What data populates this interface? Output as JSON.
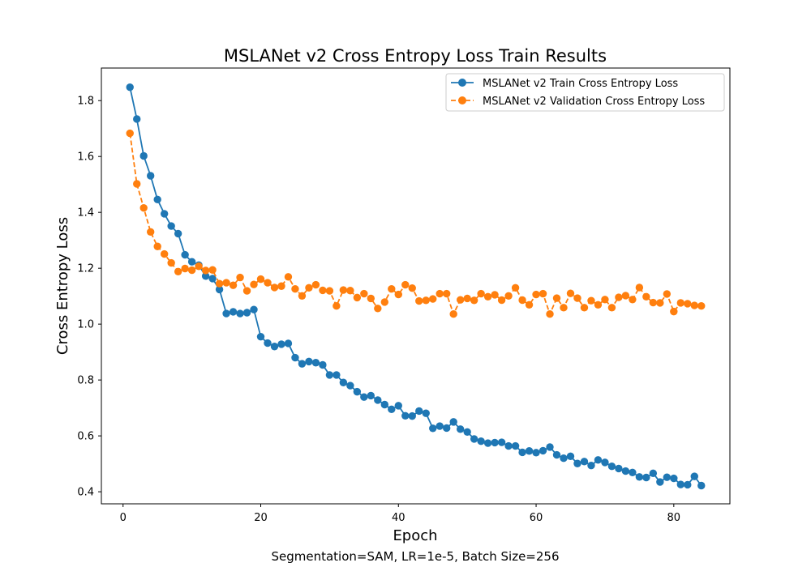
{
  "chart_data": {
    "type": "line",
    "title": "MSLANet v2 Cross Entropy Loss Train Results",
    "xlabel": "Epoch",
    "ylabel": "Cross Entropy Loss",
    "caption": "Segmentation=SAM, LR=1e-5, Batch Size=256",
    "xlim": [
      -3.15,
      88.15
    ],
    "ylim": [
      0.3568,
      1.9166
    ],
    "xticks": [
      0,
      20,
      40,
      60,
      80
    ],
    "yticks": [
      0.4,
      0.6,
      0.8,
      1.0,
      1.2,
      1.4,
      1.6,
      1.8
    ],
    "xtick_labels": [
      "0",
      "20",
      "40",
      "60",
      "80"
    ],
    "ytick_labels": [
      "0.4",
      "0.6",
      "0.8",
      "1.0",
      "1.2",
      "1.4",
      "1.6",
      "1.8"
    ],
    "grid": false,
    "legend_position": "upper-right",
    "series": [
      {
        "name": "MSLANet v2 Train Cross Entropy Loss",
        "color": "#1f77b4",
        "linestyle": "solid",
        "marker": "circle",
        "x": [
          1,
          2,
          3,
          4,
          5,
          6,
          7,
          8,
          9,
          10,
          11,
          12,
          13,
          14,
          15,
          16,
          17,
          18,
          19,
          20,
          21,
          22,
          23,
          24,
          25,
          26,
          27,
          28,
          29,
          30,
          31,
          32,
          33,
          34,
          35,
          36,
          37,
          38,
          39,
          40,
          41,
          42,
          43,
          44,
          45,
          46,
          47,
          48,
          49,
          50,
          51,
          52,
          53,
          54,
          55,
          56,
          57,
          58,
          59,
          60,
          61,
          62,
          63,
          64,
          65,
          66,
          67,
          68,
          69,
          70,
          71,
          72,
          73,
          74,
          75,
          76,
          77,
          78,
          79,
          80,
          81,
          82,
          83,
          84
        ],
        "y": [
          1.848,
          1.734,
          1.602,
          1.531,
          1.446,
          1.395,
          1.351,
          1.324,
          1.248,
          1.223,
          1.211,
          1.172,
          1.163,
          1.124,
          1.038,
          1.044,
          1.038,
          1.041,
          1.052,
          0.955,
          0.932,
          0.92,
          0.928,
          0.931,
          0.88,
          0.858,
          0.866,
          0.862,
          0.854,
          0.818,
          0.818,
          0.791,
          0.78,
          0.758,
          0.739,
          0.744,
          0.728,
          0.712,
          0.695,
          0.708,
          0.672,
          0.671,
          0.689,
          0.681,
          0.627,
          0.635,
          0.628,
          0.65,
          0.624,
          0.614,
          0.589,
          0.581,
          0.574,
          0.576,
          0.577,
          0.564,
          0.564,
          0.541,
          0.546,
          0.54,
          0.547,
          0.56,
          0.532,
          0.52,
          0.527,
          0.501,
          0.508,
          0.494,
          0.514,
          0.505,
          0.491,
          0.483,
          0.474,
          0.469,
          0.453,
          0.451,
          0.466,
          0.435,
          0.452,
          0.448,
          0.426,
          0.425,
          0.455,
          0.422
        ]
      },
      {
        "name": "MSLANet v2 Validation Cross Entropy Loss",
        "color": "#ff7f0e",
        "linestyle": "dashed",
        "marker": "circle",
        "x": [
          1,
          2,
          3,
          4,
          5,
          6,
          7,
          8,
          9,
          10,
          11,
          12,
          13,
          14,
          15,
          16,
          17,
          18,
          19,
          20,
          21,
          22,
          23,
          24,
          25,
          26,
          27,
          28,
          29,
          30,
          31,
          32,
          33,
          34,
          35,
          36,
          37,
          38,
          39,
          40,
          41,
          42,
          43,
          44,
          45,
          46,
          47,
          48,
          49,
          50,
          51,
          52,
          53,
          54,
          55,
          56,
          57,
          58,
          59,
          60,
          61,
          62,
          63,
          64,
          65,
          66,
          67,
          68,
          69,
          70,
          71,
          72,
          73,
          74,
          75,
          76,
          77,
          78,
          79,
          80,
          81,
          82,
          83,
          84
        ],
        "y": [
          1.683,
          1.502,
          1.416,
          1.33,
          1.278,
          1.251,
          1.219,
          1.188,
          1.199,
          1.193,
          1.207,
          1.192,
          1.194,
          1.145,
          1.148,
          1.139,
          1.167,
          1.119,
          1.142,
          1.161,
          1.148,
          1.131,
          1.136,
          1.169,
          1.126,
          1.101,
          1.13,
          1.141,
          1.121,
          1.119,
          1.065,
          1.122,
          1.12,
          1.095,
          1.109,
          1.092,
          1.056,
          1.079,
          1.126,
          1.106,
          1.141,
          1.129,
          1.083,
          1.085,
          1.09,
          1.109,
          1.109,
          1.036,
          1.087,
          1.092,
          1.085,
          1.109,
          1.098,
          1.105,
          1.086,
          1.101,
          1.13,
          1.086,
          1.069,
          1.106,
          1.109,
          1.036,
          1.093,
          1.059,
          1.11,
          1.093,
          1.059,
          1.084,
          1.069,
          1.088,
          1.059,
          1.096,
          1.102,
          1.088,
          1.131,
          1.098,
          1.077,
          1.076,
          1.108,
          1.045,
          1.076,
          1.073,
          1.067,
          1.065
        ]
      }
    ]
  }
}
